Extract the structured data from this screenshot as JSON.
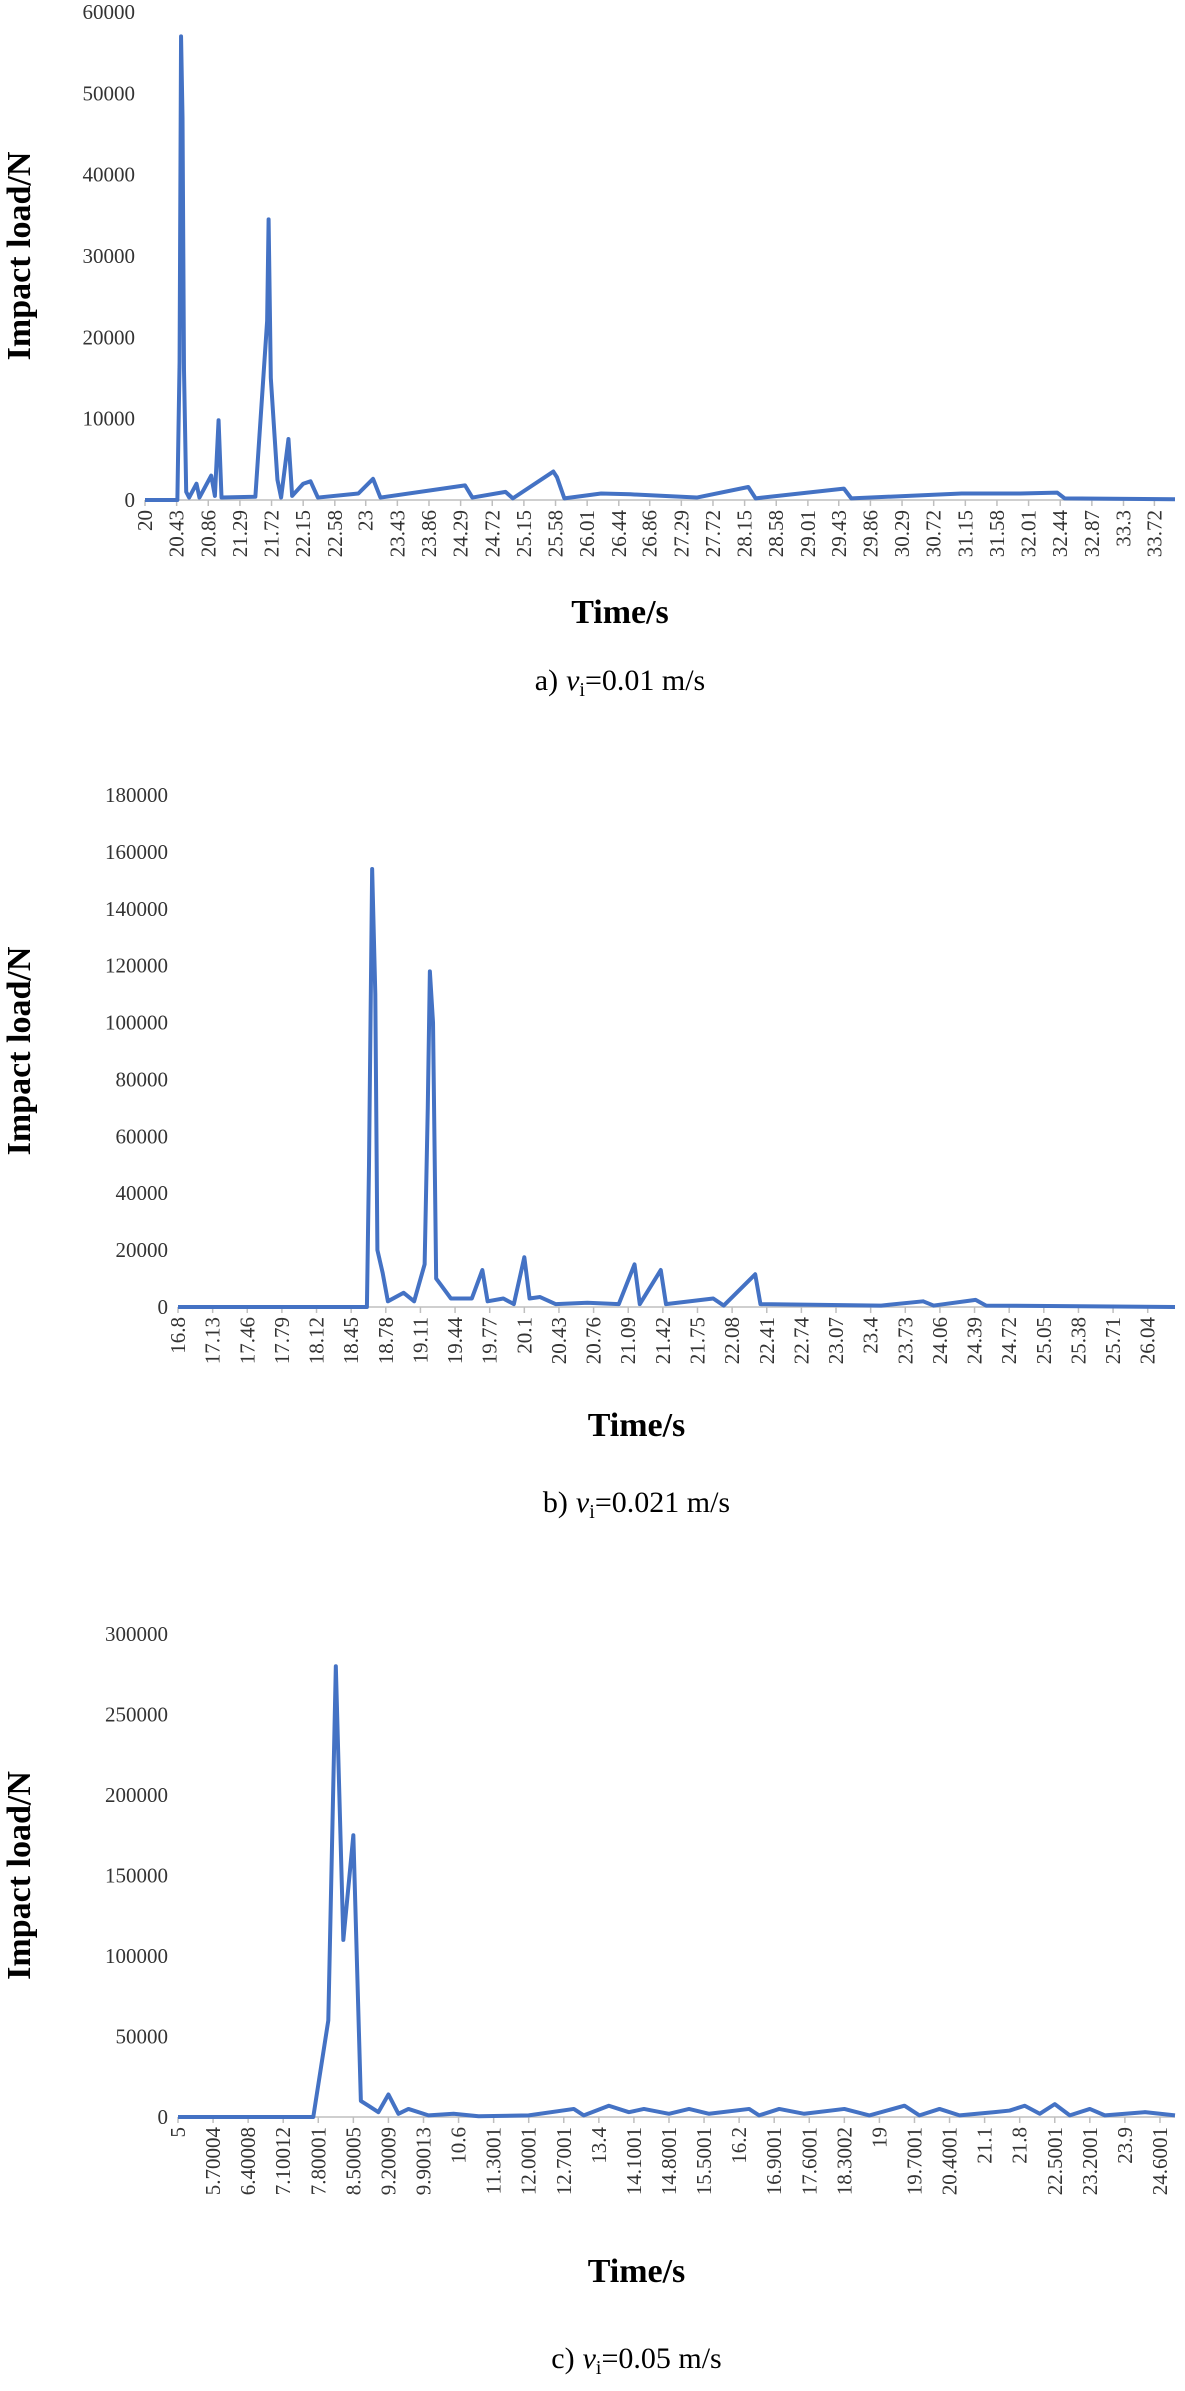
{
  "chart_data": [
    {
      "type": "line",
      "y_label": "Impact load/N",
      "x_label": "Time/s",
      "caption": {
        "prefix": "a)",
        "symbol": "v",
        "subscript": "i",
        "text": "=0.01 m/s"
      },
      "xlim": [
        20,
        34.0
      ],
      "xticks": [
        20,
        20.43,
        20.86,
        21.29,
        21.72,
        22.15,
        22.58,
        23,
        23.43,
        23.86,
        24.29,
        24.72,
        25.15,
        25.58,
        26.01,
        26.44,
        26.86,
        27.29,
        27.72,
        28.15,
        28.58,
        29.01,
        29.43,
        29.86,
        30.29,
        30.72,
        31.15,
        31.58,
        32.01,
        32.44,
        32.87,
        33.3,
        33.72
      ],
      "ylim": [
        0,
        60000
      ],
      "yticks": [
        0,
        10000,
        20000,
        30000,
        40000,
        50000,
        60000
      ],
      "series": [
        {
          "color": "#4472c4",
          "x": [
            20,
            20.44,
            20.47,
            20.49,
            20.51,
            20.53,
            20.56,
            20.6,
            20.7,
            20.74,
            20.9,
            20.95,
            21.0,
            21.04,
            21.5,
            21.66,
            21.68,
            21.71,
            21.76,
            21.8,
            21.85,
            21.95,
            22.0,
            22.15,
            22.25,
            22.35,
            22.9,
            23.1,
            23.2,
            24.35,
            24.45,
            24.9,
            25.0,
            25.55,
            25.6,
            25.7,
            26.2,
            26.6,
            27.5,
            28.2,
            28.3,
            29.5,
            29.6,
            31.1,
            31.9,
            32.4,
            32.5,
            34.0
          ],
          "values": [
            0,
            0,
            17000,
            57000,
            47000,
            16000,
            1000,
            300,
            2000,
            300,
            3000,
            500,
            9800,
            300,
            400,
            22000,
            34500,
            15000,
            8000,
            2500,
            300,
            7500,
            500,
            2000,
            2300,
            300,
            800,
            2600,
            300,
            1800,
            300,
            1000,
            200,
            3500,
            2800,
            200,
            800,
            700,
            300,
            1600,
            200,
            1400,
            200,
            800,
            800,
            900,
            200,
            100
          ]
        }
      ]
    },
    {
      "type": "line",
      "y_label": "Impact load/N",
      "x_label": "Time/s",
      "caption": {
        "prefix": "b)",
        "symbol": "v",
        "subscript": "i",
        "text": "=0.021 m/s"
      },
      "xlim": [
        16.8,
        26.3
      ],
      "xticks": [
        16.8,
        17.13,
        17.46,
        17.79,
        18.12,
        18.45,
        18.78,
        19.11,
        19.44,
        19.77,
        20.1,
        20.43,
        20.76,
        21.09,
        21.42,
        21.75,
        22.08,
        22.41,
        22.74,
        23.07,
        23.4,
        23.73,
        24.06,
        24.39,
        24.72,
        25.05,
        25.38,
        25.71,
        26.04
      ],
      "ylim": [
        0,
        180000
      ],
      "yticks": [
        0,
        20000,
        40000,
        60000,
        80000,
        100000,
        120000,
        140000,
        160000,
        180000
      ],
      "series": [
        {
          "color": "#4472c4",
          "x": [
            16.8,
            18.6,
            18.62,
            18.65,
            18.68,
            18.7,
            18.75,
            18.8,
            18.95,
            19.05,
            19.15,
            19.18,
            19.2,
            19.23,
            19.26,
            19.3,
            19.4,
            19.6,
            19.7,
            19.75,
            19.9,
            20.0,
            20.1,
            20.15,
            20.25,
            20.4,
            20.7,
            21.0,
            21.15,
            21.2,
            21.4,
            21.45,
            21.9,
            22.0,
            22.3,
            22.35,
            23.5,
            23.9,
            24.0,
            24.4,
            24.5,
            26.3
          ],
          "values": [
            0,
            0,
            50000,
            154000,
            110000,
            20000,
            12000,
            2000,
            5000,
            2000,
            15000,
            70000,
            118000,
            100000,
            10000,
            8000,
            3000,
            3000,
            13000,
            2000,
            3000,
            1000,
            17500,
            3000,
            3500,
            1000,
            1500,
            1000,
            15000,
            1000,
            13000,
            1000,
            3000,
            500,
            11500,
            1000,
            500,
            2000,
            500,
            2500,
            500,
            0
          ]
        }
      ]
    },
    {
      "type": "line",
      "y_label": "Impact load/N",
      "x_label": "Time/s",
      "caption": {
        "prefix": "c)",
        "symbol": "v",
        "subscript": "i",
        "text": "=0.05 m/s"
      },
      "xlim": [
        5,
        24.9
      ],
      "xticks": [
        5,
        5.70004,
        6.40008,
        7.10012,
        7.80001,
        8.50005,
        9.20009,
        9.90013,
        10.6,
        11.3001,
        12.0001,
        12.7001,
        13.4,
        14.1001,
        14.8001,
        15.5001,
        16.2,
        16.9001,
        17.6001,
        18.3002,
        19,
        19.7001,
        20.4001,
        21.1,
        21.8,
        22.5001,
        23.2001,
        23.9,
        24.6001
      ],
      "ylim": [
        0,
        300000
      ],
      "yticks": [
        0,
        50000,
        100000,
        150000,
        200000,
        250000,
        300000
      ],
      "series": [
        {
          "color": "#4472c4",
          "x": [
            5,
            7.7,
            8.0,
            8.15,
            8.3,
            8.5,
            8.65,
            8.8,
            9.0,
            9.2,
            9.4,
            9.6,
            10.0,
            10.5,
            11.0,
            12.0,
            12.9,
            13.1,
            13.6,
            14.0,
            14.3,
            14.8,
            15.2,
            15.6,
            16.4,
            16.6,
            17.0,
            17.5,
            18.3,
            18.8,
            19.5,
            19.8,
            20.2,
            20.6,
            21.3,
            21.6,
            21.9,
            22.2,
            22.5,
            22.8,
            23.2,
            23.5,
            24.3,
            24.9
          ],
          "values": [
            0,
            0,
            60000,
            280000,
            110000,
            175000,
            10000,
            7000,
            3000,
            14000,
            2000,
            5000,
            1000,
            2000,
            500,
            1000,
            5000,
            1000,
            7000,
            3000,
            5000,
            2000,
            5000,
            2000,
            5000,
            1000,
            5000,
            2000,
            5000,
            1000,
            7000,
            1000,
            5000,
            1000,
            3000,
            4000,
            7000,
            2000,
            8000,
            1000,
            5000,
            1000,
            3000,
            1000
          ]
        }
      ]
    }
  ]
}
